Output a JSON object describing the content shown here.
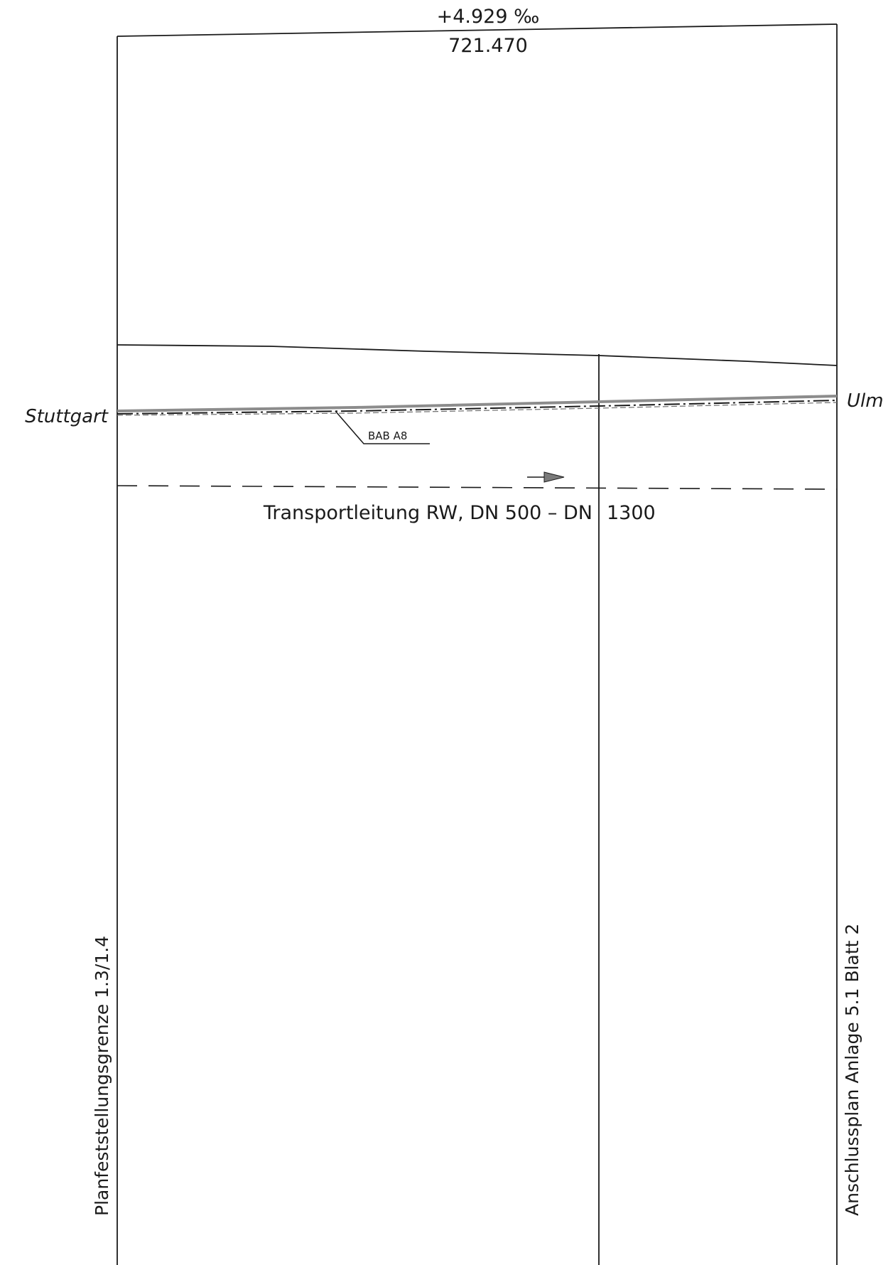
{
  "drawing": {
    "gradient_label": "+4.929 ‰",
    "elevation_label": "721.470",
    "city_left": "Stuttgart",
    "city_right": "Ulm",
    "motorway_label": "BAB A8",
    "pipeline_label": "Transportleitung RW, DN 500 – DN",
    "pipeline_label_cont": "1300",
    "left_boundary_label": "Planfeststellungsgrenze 1.3/1.4",
    "right_boundary_label": "Anschlussplan Anlage 5.1 Blatt 2"
  },
  "colors": {
    "ink": "#1a1a1a",
    "road": "#8c8c8c",
    "arrow": "#7a7a7a"
  }
}
